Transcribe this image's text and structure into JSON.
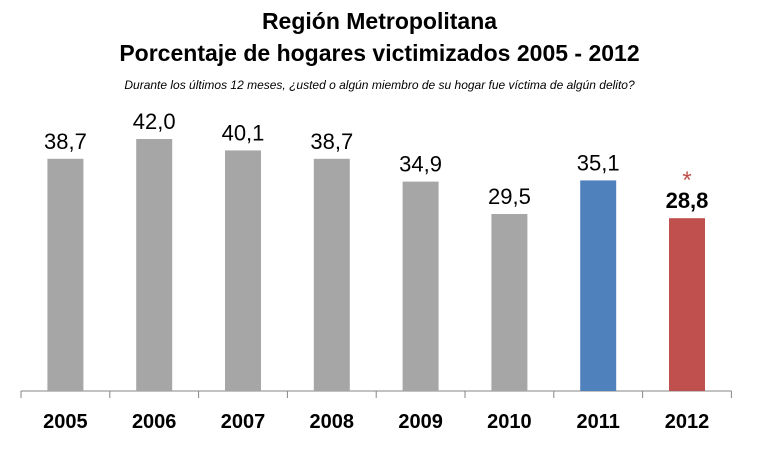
{
  "chart_data": {
    "type": "bar",
    "title": "Región Metropolitana",
    "subtitle": "Porcentaje de hogares victimizados 2005 - 2012",
    "question": "Durante los últimos 12 meses, ¿usted o algún miembro de su hogar fue víctima de algún delito?",
    "categories": [
      "2005",
      "2006",
      "2007",
      "2008",
      "2009",
      "2010",
      "2011",
      "2012"
    ],
    "values": [
      38.7,
      42.0,
      40.1,
      38.7,
      34.9,
      29.5,
      35.1,
      28.8
    ],
    "data_labels": [
      "38,7",
      "42,0",
      "40,1",
      "38,7",
      "34,9",
      "29,5",
      "35,1",
      "28,8"
    ],
    "bar_colors": [
      "#a6a6a6",
      "#a6a6a6",
      "#a6a6a6",
      "#a6a6a6",
      "#a6a6a6",
      "#a6a6a6",
      "#4f81bd",
      "#c0504d"
    ],
    "bold_labels": [
      false,
      false,
      false,
      false,
      false,
      false,
      false,
      true
    ],
    "annotation": {
      "category": "2012",
      "text": "*",
      "color": "#c0504d"
    },
    "ylim": [
      0,
      45
    ],
    "grid": false,
    "legend": "none",
    "xlabel": "",
    "ylabel": ""
  }
}
